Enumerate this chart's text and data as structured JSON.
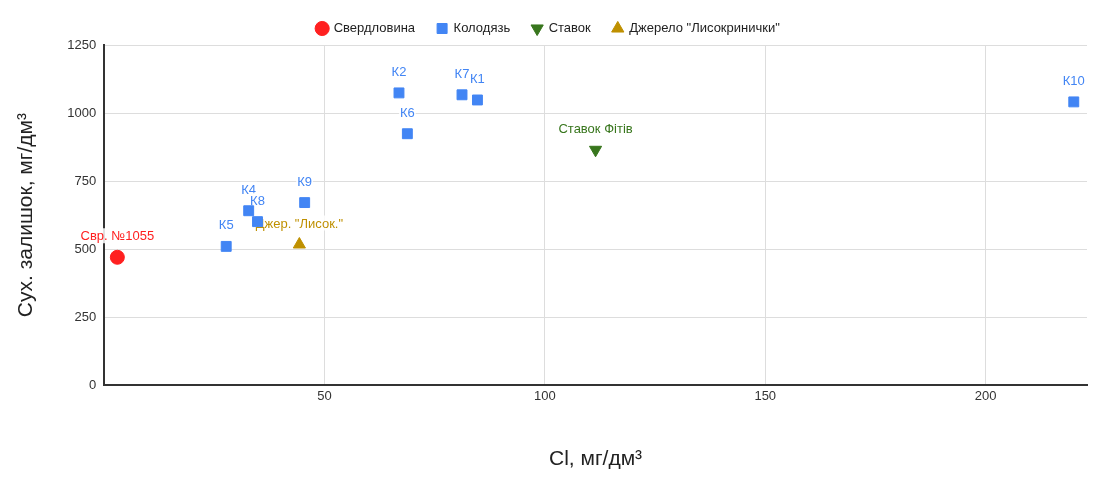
{
  "chart_data": {
    "type": "scatter",
    "xlabel": "Cl, мг/дм³",
    "ylabel": "Сух. залишок, мг/дм³",
    "xlim": [
      0,
      223
    ],
    "xticks": [
      50,
      100,
      150,
      200
    ],
    "ylim": [
      0,
      1250
    ],
    "yticks": [
      0,
      250,
      500,
      750,
      1000,
      1250
    ],
    "grid": true,
    "legend": "top",
    "series": [
      {
        "name": "Свердловина",
        "color": "#ff2020",
        "marker": "circle",
        "x": [
          3
        ],
        "values": [
          470
        ]
      },
      {
        "name": "Колодязь",
        "color": "#4285f4",
        "marker": "square",
        "x": [
          84.7,
          66.9,
          32.8,
          27.7,
          68.8,
          81.2,
          34.8,
          45.5,
          220
        ],
        "values": [
          1048,
          1074,
          641,
          510,
          924,
          1067,
          601,
          671,
          1041
        ]
      },
      {
        "name": "Ставок",
        "color": "#38761d",
        "marker": "triangle-down",
        "x": [
          111.5
        ],
        "values": [
          865
        ]
      },
      {
        "name": "Джерело \"Лисокринички\"",
        "color": "#bf9000",
        "marker": "triangle",
        "x": [
          44.3
        ],
        "values": [
          517
        ]
      }
    ],
    "annotations": [
      {
        "text": "Свр. №1055",
        "x": 3,
        "y": 470
      },
      {
        "text": "К1",
        "x": 84.7,
        "y": 1048
      },
      {
        "text": "К2",
        "x": 66.9,
        "y": 1074
      },
      {
        "text": "К4",
        "x": 32.8,
        "y": 641
      },
      {
        "text": "К5",
        "x": 27.7,
        "y": 510
      },
      {
        "text": "К6",
        "x": 68.8,
        "y": 924
      },
      {
        "text": "К7",
        "x": 81.2,
        "y": 1067
      },
      {
        "text": "К8",
        "x": 34.8,
        "y": 601
      },
      {
        "text": "К9",
        "x": 45.5,
        "y": 671
      },
      {
        "text": "К10",
        "x": 220,
        "y": 1041
      },
      {
        "text": "Ставок Фітів",
        "x": 111.5,
        "y": 865
      },
      {
        "text": "Джер. \"Лисок.\"",
        "x": 44.3,
        "y": 517
      }
    ]
  }
}
